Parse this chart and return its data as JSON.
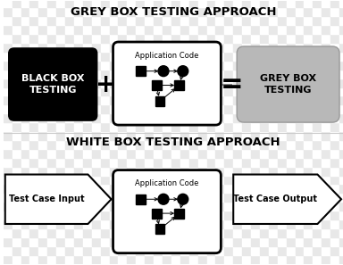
{
  "grey_title": "GREY BOX TESTING APPROACH",
  "white_title": "WHITE BOX TESTING APPROACH",
  "black_box_text": "BLACK BOX\nTESTING",
  "grey_box_text": "GREY BOX\nTESTING",
  "app_code_label": "Application Code",
  "test_input_text": "Test Case Input",
  "test_output_text": "Test Case Output",
  "checker_light": "#e8e8e8",
  "checker_dark": "#ffffff",
  "checker_size": 10
}
